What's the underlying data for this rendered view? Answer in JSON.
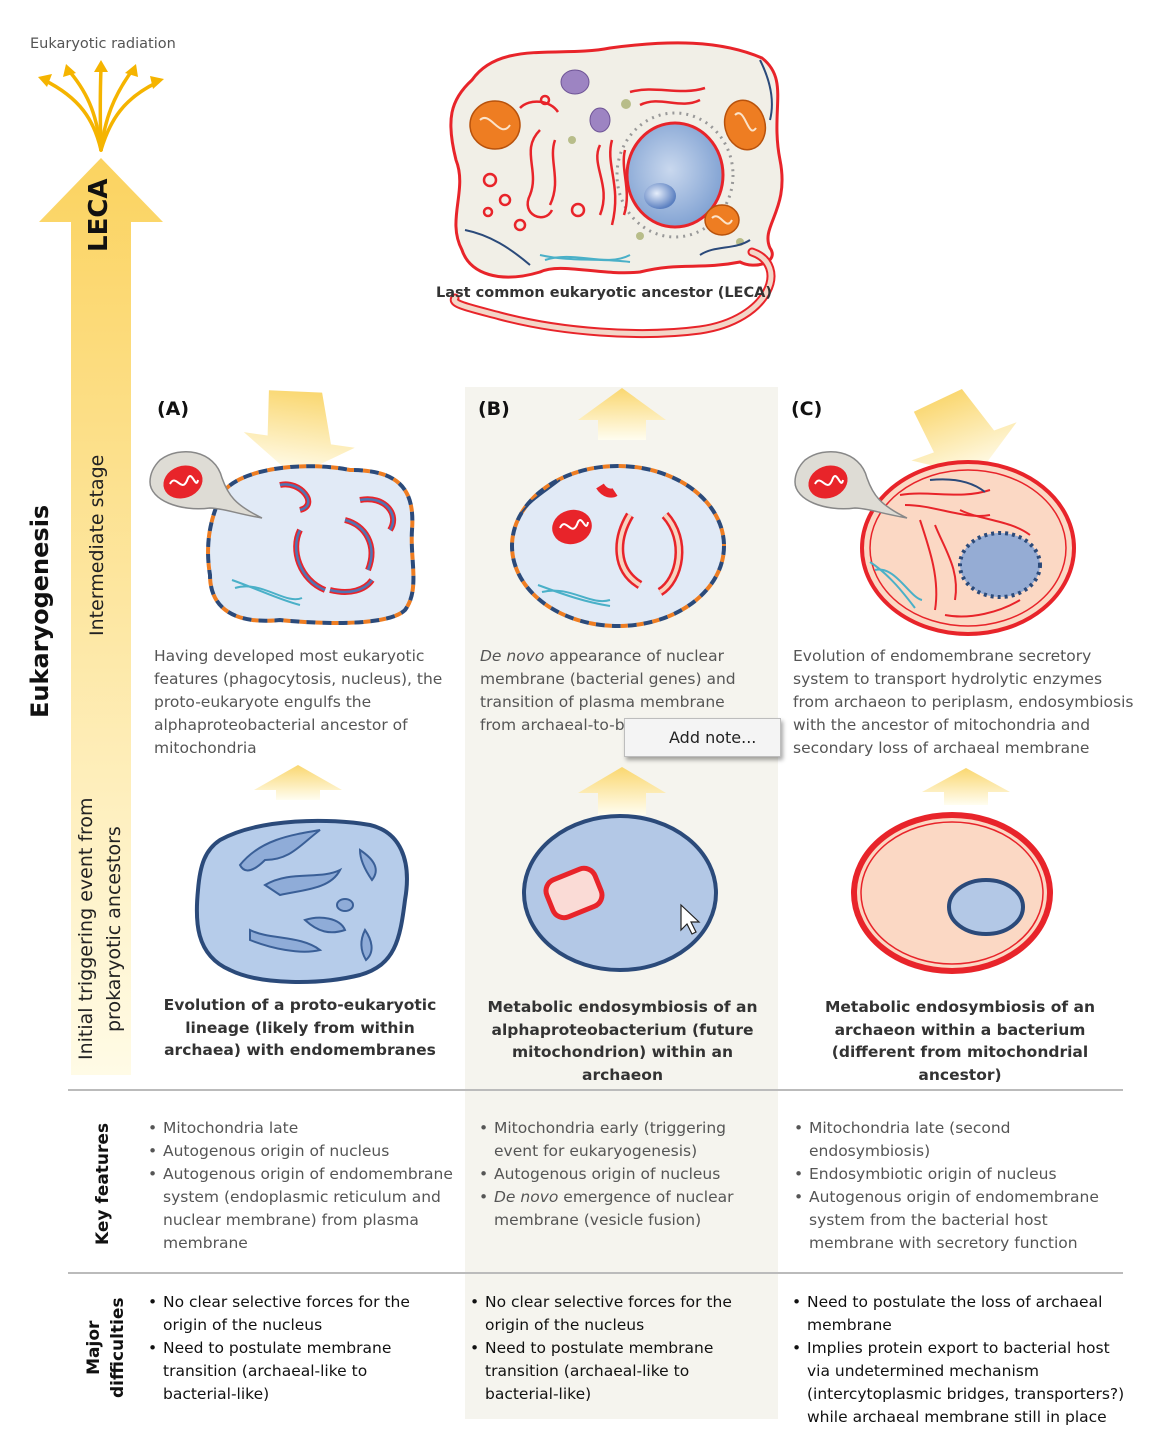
{
  "radiation_label": "Eukaryotic radiation",
  "leca_arrow_label": "LECA",
  "leca_caption": "Last common eukaryotic ancestor (LECA)",
  "side_labels": {
    "eukaryogenesis": "Eukaryogenesis",
    "intermediate": "Intermediate stage",
    "initial_line1": "Initial triggering event from",
    "initial_line2": "prokaryotic ancestors",
    "key_features": "Key features",
    "major_line1": "Major",
    "major_line2": "difficulties"
  },
  "columns": [
    {
      "label": "(A)",
      "intermediate_text": "Having developed most eukaryotic features (phagocytosis, nucleus), the proto-eukaryote engulfs the alphaproteobacterial ancestor of mitochondria",
      "trigger_text": "Evolution of a proto-eukaryotic lineage (likely from within archaea) with endomembranes",
      "key_features": [
        "Mitochondria late",
        "Autogenous origin of nucleus",
        "Autogenous origin of endomembrane system (endoplasmic reticulum and nuclear membrane) from plasma membrane"
      ],
      "difficulties": [
        "No clear selective forces for the origin of the nucleus",
        "Need to postulate membrane transition (archaeal-like to bacterial-like)"
      ]
    },
    {
      "label": "(B)",
      "intermediate_italic": "De novo",
      "intermediate_text": " appearance of nuclear membrane (bacterial genes) and transition of plasma membrane from archaeal-to-b",
      "trigger_text": "Metabolic endosymbiosis of an alphaproteobacterium (future mitochondrion) within an archaeon",
      "key_features": [
        "Mitochondria early (triggering event for eukaryogenesis)",
        "Autogenous origin of nucleus"
      ],
      "key_feature_italic_prefix": "De novo",
      "key_feature_italic_rest": " emergence of nuclear membrane (vesicle fusion)",
      "difficulties": [
        "No clear selective forces for the origin of the nucleus",
        "Need to postulate membrane transition (archaeal-like to bacterial-like)"
      ]
    },
    {
      "label": "(C)",
      "intermediate_text": "Evolution of endomembrane secretory system to transport hydrolytic enzymes from archaeon to periplasm, endosymbiosis with the ancestor of mitochondria and secondary loss of archaeal membrane",
      "trigger_text": "Metabolic endosymbiosis of an archaeon within a bacterium (different from mitochondrial ancestor)",
      "key_features": [
        "Mitochondria late (second endosymbiosis)",
        "Endosymbiotic origin of nucleus",
        "Autogenous origin of endomembrane system from the bacterial host membrane with secretory function"
      ],
      "difficulties": [
        "Need to  postulate the loss of archaeal membrane",
        "Implies protein export to bacterial host via undetermined mechanism (intercytoplasmic bridges, transporters?) while archaeal membrane still in place"
      ]
    }
  ],
  "context_menu": {
    "item": "Add note..."
  },
  "colors": {
    "arrow_yellow": "#fbd76a",
    "membrane_red": "#e8242a",
    "membrane_blue": "#2b4a7a",
    "mito_orange": "#ee7d22",
    "cytoplasm_blue": "#dce7f5",
    "cytoplasm_pink": "#fbd8c4",
    "column_bg": "#f5f4ee"
  }
}
